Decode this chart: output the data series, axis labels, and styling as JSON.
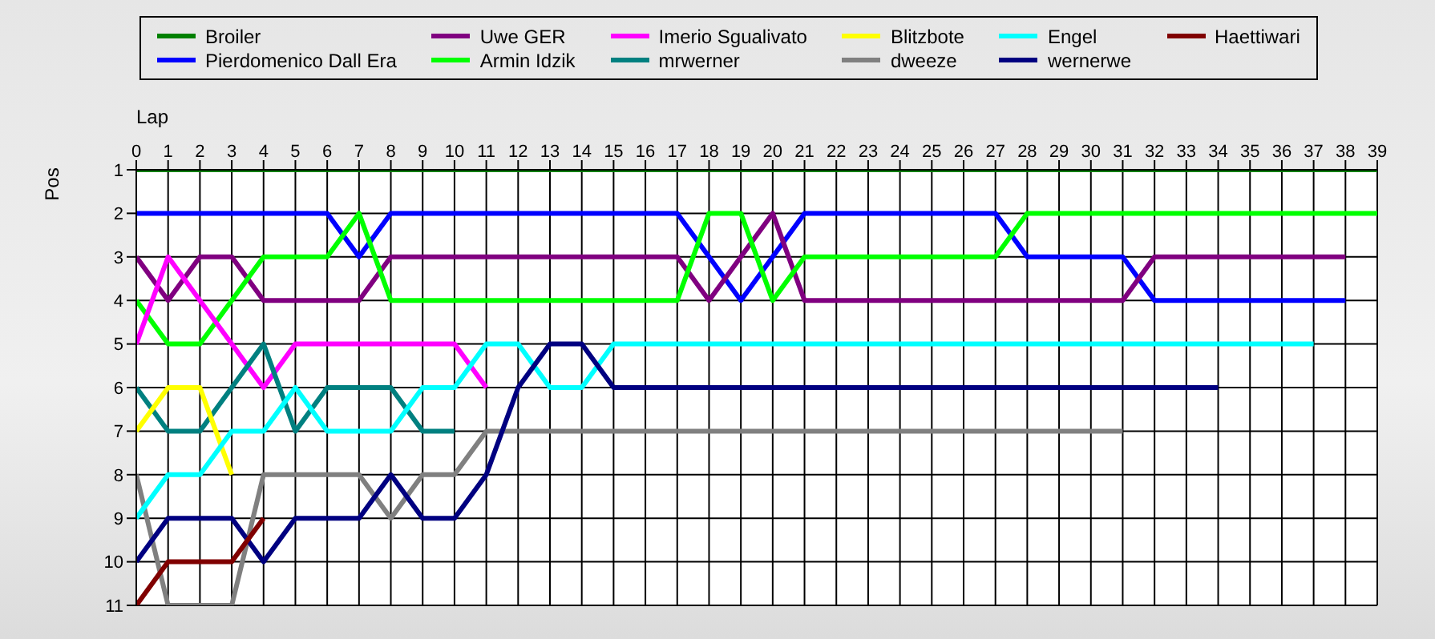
{
  "chart_data": {
    "type": "line",
    "xlabel": "Lap",
    "ylabel": "Pos",
    "x": [
      0,
      1,
      2,
      3,
      4,
      5,
      6,
      7,
      8,
      9,
      10,
      11,
      12,
      13,
      14,
      15,
      16,
      17,
      18,
      19,
      20,
      21,
      22,
      23,
      24,
      25,
      26,
      27,
      28,
      29,
      30,
      31,
      32,
      33,
      34,
      35,
      36,
      37,
      38,
      39
    ],
    "xlim": [
      0,
      39
    ],
    "xticks": [
      0,
      1,
      2,
      3,
      4,
      5,
      6,
      7,
      8,
      9,
      10,
      11,
      12,
      13,
      14,
      15,
      16,
      17,
      18,
      19,
      20,
      21,
      22,
      23,
      24,
      25,
      26,
      27,
      28,
      29,
      30,
      31,
      32,
      33,
      34,
      35,
      36,
      37,
      38,
      39
    ],
    "ylim": [
      11,
      1
    ],
    "yticks": [
      1,
      2,
      3,
      4,
      5,
      6,
      7,
      8,
      9,
      10,
      11
    ],
    "grid": true,
    "legend": "top",
    "marker": "none",
    "line_style": "solid",
    "series": [
      {
        "name": "Broiler",
        "color": "#008000",
        "values": [
          1,
          1,
          1,
          1,
          1,
          1,
          1,
          1,
          1,
          1,
          1,
          1,
          1,
          1,
          1,
          1,
          1,
          1,
          1,
          1,
          1,
          1,
          1,
          1,
          1,
          1,
          1,
          1,
          1,
          1,
          1,
          1,
          1,
          1,
          1,
          1,
          1,
          1,
          1,
          1
        ]
      },
      {
        "name": "Pierdomenico Dall Era",
        "color": "#0000ff",
        "values": [
          2,
          2,
          2,
          2,
          2,
          2,
          2,
          3,
          2,
          2,
          2,
          2,
          2,
          2,
          2,
          2,
          2,
          2,
          3,
          4,
          3,
          2,
          2,
          2,
          2,
          2,
          2,
          2,
          3,
          3,
          3,
          3,
          4,
          4,
          4,
          4,
          4,
          4,
          4,
          null
        ]
      },
      {
        "name": "Uwe GER",
        "color": "#800080",
        "values": [
          3,
          4,
          3,
          3,
          4,
          4,
          4,
          4,
          3,
          3,
          3,
          3,
          3,
          3,
          3,
          3,
          3,
          3,
          4,
          3,
          2,
          4,
          4,
          4,
          4,
          4,
          4,
          4,
          4,
          4,
          4,
          4,
          3,
          3,
          3,
          3,
          3,
          3,
          3,
          null
        ]
      },
      {
        "name": "Armin Idzik",
        "color": "#00ff00",
        "values": [
          4,
          5,
          5,
          4,
          3,
          3,
          3,
          2,
          4,
          4,
          4,
          4,
          4,
          4,
          4,
          4,
          4,
          4,
          2,
          2,
          4,
          3,
          3,
          3,
          3,
          3,
          3,
          3,
          2,
          2,
          2,
          2,
          2,
          2,
          2,
          2,
          2,
          2,
          2,
          2
        ]
      },
      {
        "name": "Imerio Sgualivato",
        "color": "#ff00ff",
        "values": [
          5,
          3,
          4,
          5,
          6,
          5,
          5,
          5,
          5,
          5,
          5,
          6,
          null,
          null,
          null,
          null,
          null,
          null,
          null,
          null,
          null,
          null,
          null,
          null,
          null,
          null,
          null,
          null,
          null,
          null,
          null,
          null,
          null,
          null,
          null,
          null,
          null,
          null,
          null,
          null
        ]
      },
      {
        "name": "mrwerner",
        "color": "#008080",
        "values": [
          6,
          7,
          7,
          6,
          5,
          7,
          6,
          6,
          6,
          7,
          7,
          null,
          null,
          null,
          null,
          null,
          null,
          null,
          null,
          null,
          null,
          null,
          null,
          null,
          null,
          null,
          null,
          null,
          null,
          null,
          null,
          null,
          null,
          null,
          null,
          null,
          null,
          null,
          null,
          null
        ]
      },
      {
        "name": "Blitzbote",
        "color": "#ffff00",
        "values": [
          7,
          6,
          6,
          8,
          null,
          null,
          null,
          null,
          null,
          null,
          null,
          null,
          null,
          null,
          null,
          null,
          null,
          null,
          null,
          null,
          null,
          null,
          null,
          null,
          null,
          null,
          null,
          null,
          null,
          null,
          null,
          null,
          null,
          null,
          null,
          null,
          null,
          null,
          null,
          null
        ]
      },
      {
        "name": "dweeze",
        "color": "#808080",
        "values": [
          8,
          11,
          11,
          11,
          8,
          8,
          8,
          8,
          9,
          8,
          8,
          7,
          7,
          7,
          7,
          7,
          7,
          7,
          7,
          7,
          7,
          7,
          7,
          7,
          7,
          7,
          7,
          7,
          7,
          7,
          7,
          7,
          null,
          null,
          null,
          null,
          null,
          null,
          null,
          null
        ]
      },
      {
        "name": "Engel",
        "color": "#00ffff",
        "values": [
          9,
          8,
          8,
          7,
          7,
          6,
          7,
          7,
          7,
          6,
          6,
          5,
          5,
          6,
          6,
          5,
          5,
          5,
          5,
          5,
          5,
          5,
          5,
          5,
          5,
          5,
          5,
          5,
          5,
          5,
          5,
          5,
          5,
          5,
          5,
          5,
          5,
          5,
          null,
          null
        ]
      },
      {
        "name": "wernerwe",
        "color": "#000080",
        "values": [
          10,
          9,
          9,
          9,
          10,
          9,
          9,
          9,
          8,
          9,
          9,
          8,
          6,
          5,
          5,
          6,
          6,
          6,
          6,
          6,
          6,
          6,
          6,
          6,
          6,
          6,
          6,
          6,
          6,
          6,
          6,
          6,
          6,
          6,
          6,
          null,
          null,
          null,
          null,
          null
        ]
      },
      {
        "name": "Haettiwari",
        "color": "#800000",
        "values": [
          11,
          10,
          10,
          10,
          9,
          null,
          null,
          null,
          null,
          null,
          null,
          null,
          null,
          null,
          null,
          null,
          null,
          null,
          null,
          null,
          null,
          null,
          null,
          null,
          null,
          null,
          null,
          null,
          null,
          null,
          null,
          null,
          null,
          null,
          null,
          null,
          null,
          null,
          null,
          null
        ]
      }
    ]
  }
}
